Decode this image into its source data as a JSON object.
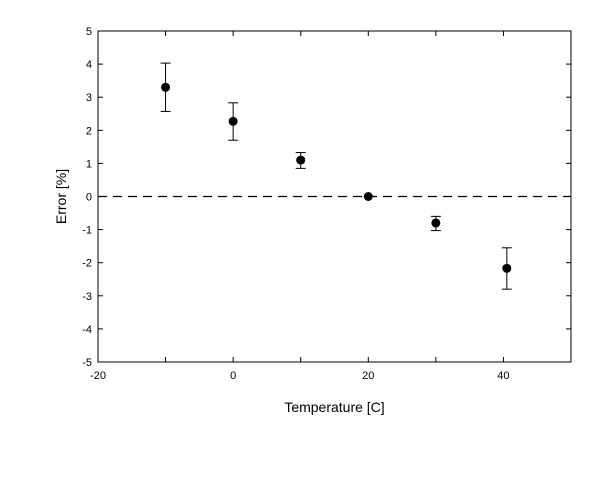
{
  "chart_data": {
    "type": "scatter",
    "title": "",
    "xlabel": "Temperature [C]",
    "ylabel": "Error [%]",
    "xlim": [
      -20,
      50
    ],
    "ylim": [
      -5,
      5
    ],
    "x_ticks": [
      -20,
      0,
      20,
      40
    ],
    "y_ticks": [
      -5,
      -4,
      -3,
      -2,
      -1,
      0,
      1,
      2,
      3,
      4,
      5
    ],
    "grid": false,
    "legend": "none",
    "reference_line": {
      "y": 0,
      "style": "dashed"
    },
    "series": [
      {
        "x": [
          -10,
          0,
          10,
          20,
          30,
          40.5
        ],
        "y": [
          3.3,
          2.27,
          1.1,
          0.0,
          -0.8,
          -2.17
        ],
        "error_low": [
          2.57,
          1.7,
          0.85,
          0.0,
          -1.03,
          -2.8
        ],
        "error_high": [
          4.03,
          2.83,
          1.33,
          0.0,
          -0.6,
          -1.55
        ],
        "color": "#000000"
      }
    ]
  }
}
